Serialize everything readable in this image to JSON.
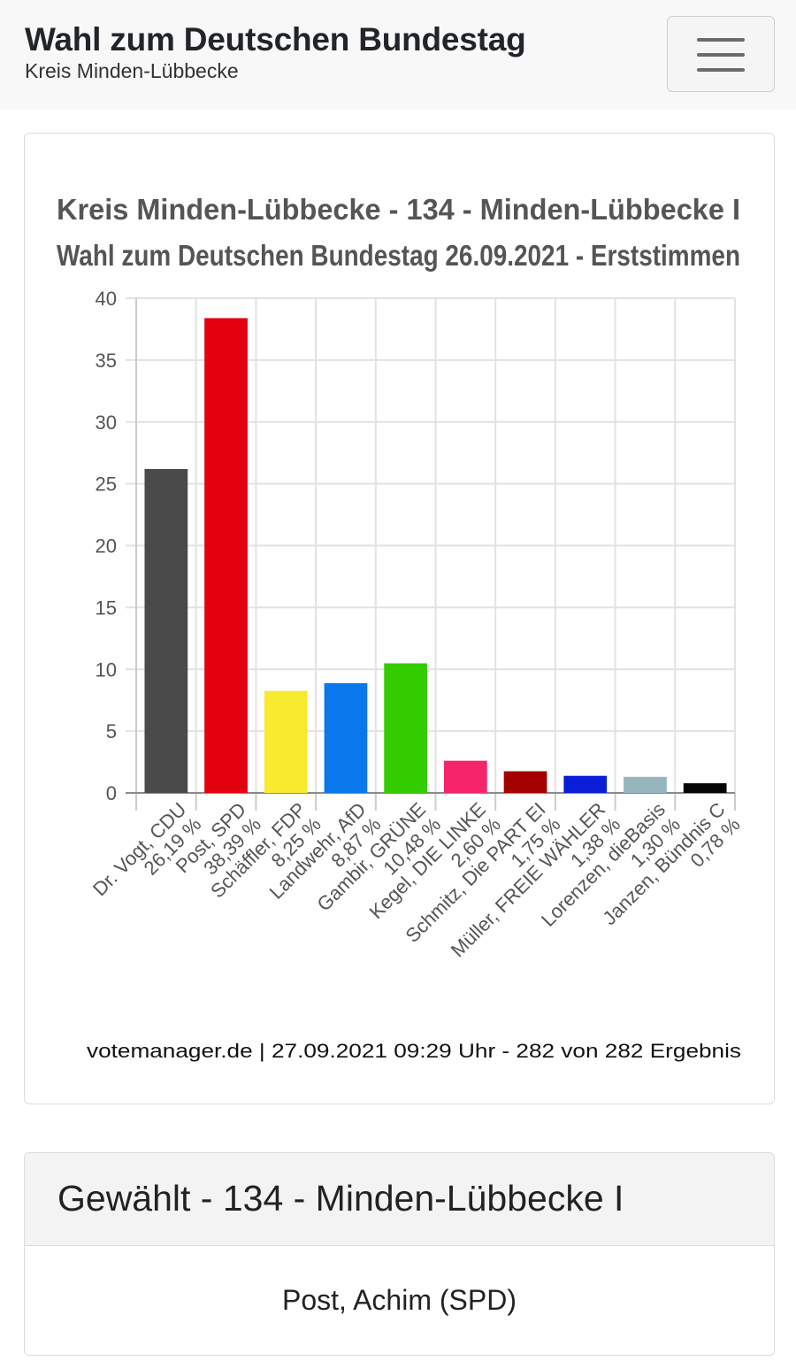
{
  "header": {
    "title": "Wahl zum Deutschen Bundestag",
    "subtitle": "Kreis Minden-Lübbecke",
    "menu_icon": "hamburger-menu-icon"
  },
  "chart_card": {
    "source_note": "votemanager.de | 27.09.2021 09:29 Uhr - 282 von 282 Ergebnis"
  },
  "chart_data": {
    "type": "bar",
    "title": "Kreis Minden-Lübbecke - 134 - Minden-Lübbecke I",
    "subtitle": "Wahl zum Deutschen Bundestag 26.09.2021  - Erststimmen",
    "categories": [
      "Dr. Vogt, CDU",
      "Post, SPD",
      "Schäffler, FDP",
      "Landwehr, AfD",
      "Gambir, GRÜNE",
      "Kegel, DIE LINKE",
      "Schmitz, Die PART EI",
      "Müller, FREIE WÄHLER",
      "Lorenzen, dieBasis",
      "Janzen, Bündnis C"
    ],
    "values": [
      26.19,
      38.39,
      8.25,
      8.87,
      10.48,
      2.6,
      1.75,
      1.38,
      1.3,
      0.78
    ],
    "value_labels": [
      "26,19 %",
      "38,39 %",
      "8,25 %",
      "8,87 %",
      "10,48 %",
      "2,60 %",
      "1,75 %",
      "1,38 %",
      "1,30 %",
      "0,78 %"
    ],
    "colors": [
      "#4a4a4a",
      "#e3000f",
      "#f7ea2f",
      "#0a78ea",
      "#33cc00",
      "#f6246a",
      "#a50000",
      "#0a1ed8",
      "#95b6bd",
      "#050505"
    ],
    "y_ticks": [
      "0",
      "5",
      "10",
      "15",
      "20",
      "25",
      "30",
      "35",
      "40"
    ],
    "ylim": [
      0,
      40
    ],
    "grid": true,
    "legend": "none"
  },
  "elected": {
    "title": "Gewählt - 134 - Minden-Lübbecke I",
    "winner": "Post, Achim (SPD)"
  }
}
